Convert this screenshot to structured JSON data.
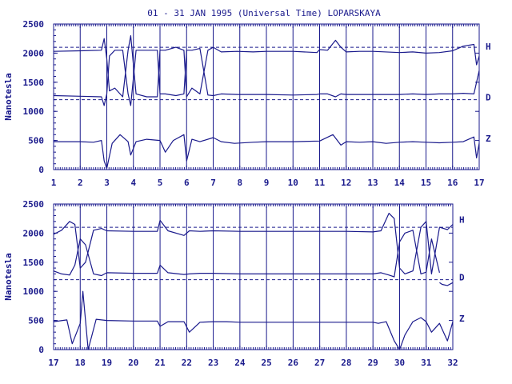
{
  "chart_data": {
    "type": "line",
    "title": "01 - 31 JAN 1995 (Universal Time) LOPARSKAYA",
    "ylabel": "Nanotesla",
    "ylim": [
      0,
      2500
    ],
    "yticks": [
      "0",
      "500",
      "1000",
      "1500",
      "2000",
      "2500"
    ],
    "grid": true,
    "color": "#1a1a8c",
    "reference_levels": [
      2100,
      1200
    ],
    "panels": [
      {
        "xlim": [
          1,
          17
        ],
        "xticks": [
          "1",
          "2",
          "3",
          "4",
          "5",
          "6",
          "7",
          "8",
          "9",
          "10",
          "11",
          "12",
          "13",
          "14",
          "15",
          "16",
          "17"
        ],
        "series": [
          {
            "name": "H",
            "x": [
              1,
              2,
              2.8,
              2.9,
              3,
              3.1,
              3.3,
              3.6,
              3.8,
              3.9,
              4.1,
              4.5,
              4.9,
              5,
              5.2,
              5.6,
              5.9,
              6,
              6.2,
              6.5,
              6.8,
              7,
              7.3,
              7.9,
              8.5,
              9,
              10,
              10.9,
              11,
              11.3,
              11.6,
              11.8,
              12,
              12.5,
              13,
              14,
              14.5,
              15,
              15.5,
              16,
              16.4,
              16.8,
              16.9,
              17
            ],
            "values": [
              2030,
              2040,
              2050,
              2250,
              1900,
              1350,
              1400,
              1250,
              2050,
              2300,
              1300,
              1250,
              1250,
              2050,
              2050,
              2100,
              2050,
              1250,
              1400,
              1300,
              2050,
              2100,
              2020,
              2030,
              2020,
              2030,
              2030,
              2010,
              2060,
              2050,
              2220,
              2100,
              2020,
              2030,
              2030,
              2010,
              2020,
              2000,
              2010,
              2040,
              2120,
              2150,
              1800,
              1950
            ]
          },
          {
            "name": "D",
            "x": [
              1,
              2,
              2.8,
              2.9,
              3,
              3.1,
              3.3,
              3.6,
              3.8,
              3.9,
              4.1,
              4.5,
              4.9,
              5,
              5.2,
              5.6,
              5.9,
              6,
              6.2,
              6.5,
              6.8,
              7,
              7.3,
              7.9,
              8.5,
              9,
              10,
              10.9,
              11,
              11.3,
              11.6,
              11.8,
              12,
              12.5,
              13,
              14,
              14.5,
              15,
              15.5,
              16,
              16.4,
              16.8,
              16.9,
              17
            ],
            "values": [
              1270,
              1260,
              1250,
              1100,
              1300,
              1950,
              2050,
              2050,
              1300,
              1100,
              2050,
              2050,
              2050,
              1300,
              1300,
              1270,
              1300,
              2050,
              2050,
              2080,
              1280,
              1270,
              1300,
              1290,
              1290,
              1290,
              1280,
              1290,
              1300,
              1300,
              1250,
              1300,
              1290,
              1290,
              1290,
              1290,
              1300,
              1290,
              1300,
              1300,
              1310,
              1300,
              1500,
              1700
            ]
          },
          {
            "name": "Z",
            "x": [
              1,
              2,
              2.5,
              2.8,
              2.9,
              3,
              3.2,
              3.5,
              3.8,
              3.9,
              4.1,
              4.5,
              5,
              5.2,
              5.5,
              5.9,
              6,
              6.2,
              6.5,
              7,
              7.3,
              7.8,
              8.5,
              9,
              10,
              11,
              11.5,
              11.8,
              12,
              12.5,
              13,
              13.5,
              14,
              14.5,
              15,
              15.5,
              16,
              16.4,
              16.8,
              16.9,
              17
            ],
            "values": [
              480,
              480,
              470,
              500,
              150,
              20,
              450,
              600,
              480,
              250,
              480,
              520,
              500,
              300,
              500,
              600,
              150,
              520,
              480,
              550,
              480,
              450,
              470,
              480,
              480,
              490,
              600,
              420,
              480,
              470,
              480,
              450,
              470,
              480,
              470,
              460,
              470,
              480,
              560,
              200,
              450
            ]
          }
        ]
      },
      {
        "xlim": [
          17,
          32
        ],
        "xticks": [
          "17",
          "18",
          "19",
          "20",
          "21",
          "22",
          "23",
          "24",
          "25",
          "26",
          "27",
          "28",
          "29",
          "30",
          "31",
          "32"
        ],
        "series": [
          {
            "name": "H",
            "x": [
              17,
              17.3,
              17.6,
              17.8,
              18,
              18.2,
              18.5,
              18.8,
              19,
              20,
              20.9,
              21,
              21.3,
              21.9,
              22.1,
              22.5,
              23,
              24,
              25,
              26,
              27,
              28,
              29,
              29.3,
              29.6,
              29.8,
              30,
              30.2,
              30.5,
              30.8,
              31,
              31.2,
              31.5,
              31.8,
              32
            ],
            "values": [
              1980,
              2050,
              2200,
              2150,
              1400,
              1500,
              2050,
              2080,
              2040,
              2030,
              2030,
              2220,
              2040,
              1960,
              2040,
              2030,
              2040,
              2030,
              2030,
              2030,
              2030,
              2030,
              2020,
              2040,
              2340,
              2250,
              1400,
              1300,
              1350,
              2100,
              2200,
              1300,
              2100,
              2060,
              2150
            ]
          },
          {
            "name": "D",
            "x": [
              17,
              17.3,
              17.6,
              17.8,
              18,
              18.2,
              18.5,
              18.8,
              19,
              20,
              20.9,
              21,
              21.3,
              21.9,
              22.1,
              22.5,
              23,
              24,
              25,
              26,
              27,
              28,
              29,
              29.3,
              29.6,
              29.8,
              30,
              30.2,
              30.5,
              30.8,
              31,
              31.2,
              31.5
            ],
            "values": [
              1350,
              1300,
              1280,
              1450,
              1900,
              1800,
              1300,
              1270,
              1320,
              1310,
              1310,
              1450,
              1320,
              1290,
              1300,
              1310,
              1310,
              1300,
              1300,
              1300,
              1300,
              1300,
              1300,
              1320,
              1280,
              1250,
              1850,
              2000,
              2050,
              1300,
              1330,
              1900,
              1320
            ]
          },
          {
            "name": "D",
            "x": [
              31.5,
              31.6,
              31.8,
              32
            ],
            "values": [
              1150,
              1120,
              1100,
              1150
            ]
          },
          {
            "name": "Z",
            "x": [
              17,
              17.5,
              17.7,
              18,
              18.1,
              18.3,
              18.6,
              19,
              20,
              20.9,
              21,
              21.3,
              21.9,
              22.1,
              22.5,
              23,
              23.5,
              24,
              25,
              26,
              27,
              28,
              29,
              29.2,
              29.5,
              29.8,
              30,
              30.2,
              30.5,
              30.8,
              31,
              31.2,
              31.5,
              31.8,
              32
            ],
            "values": [
              480,
              510,
              100,
              450,
              1000,
              0,
              520,
              500,
              490,
              490,
              400,
              480,
              480,
              300,
              470,
              480,
              480,
              470,
              470,
              470,
              470,
              470,
              470,
              450,
              480,
              150,
              0,
              250,
              480,
              550,
              480,
              300,
              450,
              150,
              480
            ]
          }
        ]
      }
    ]
  }
}
